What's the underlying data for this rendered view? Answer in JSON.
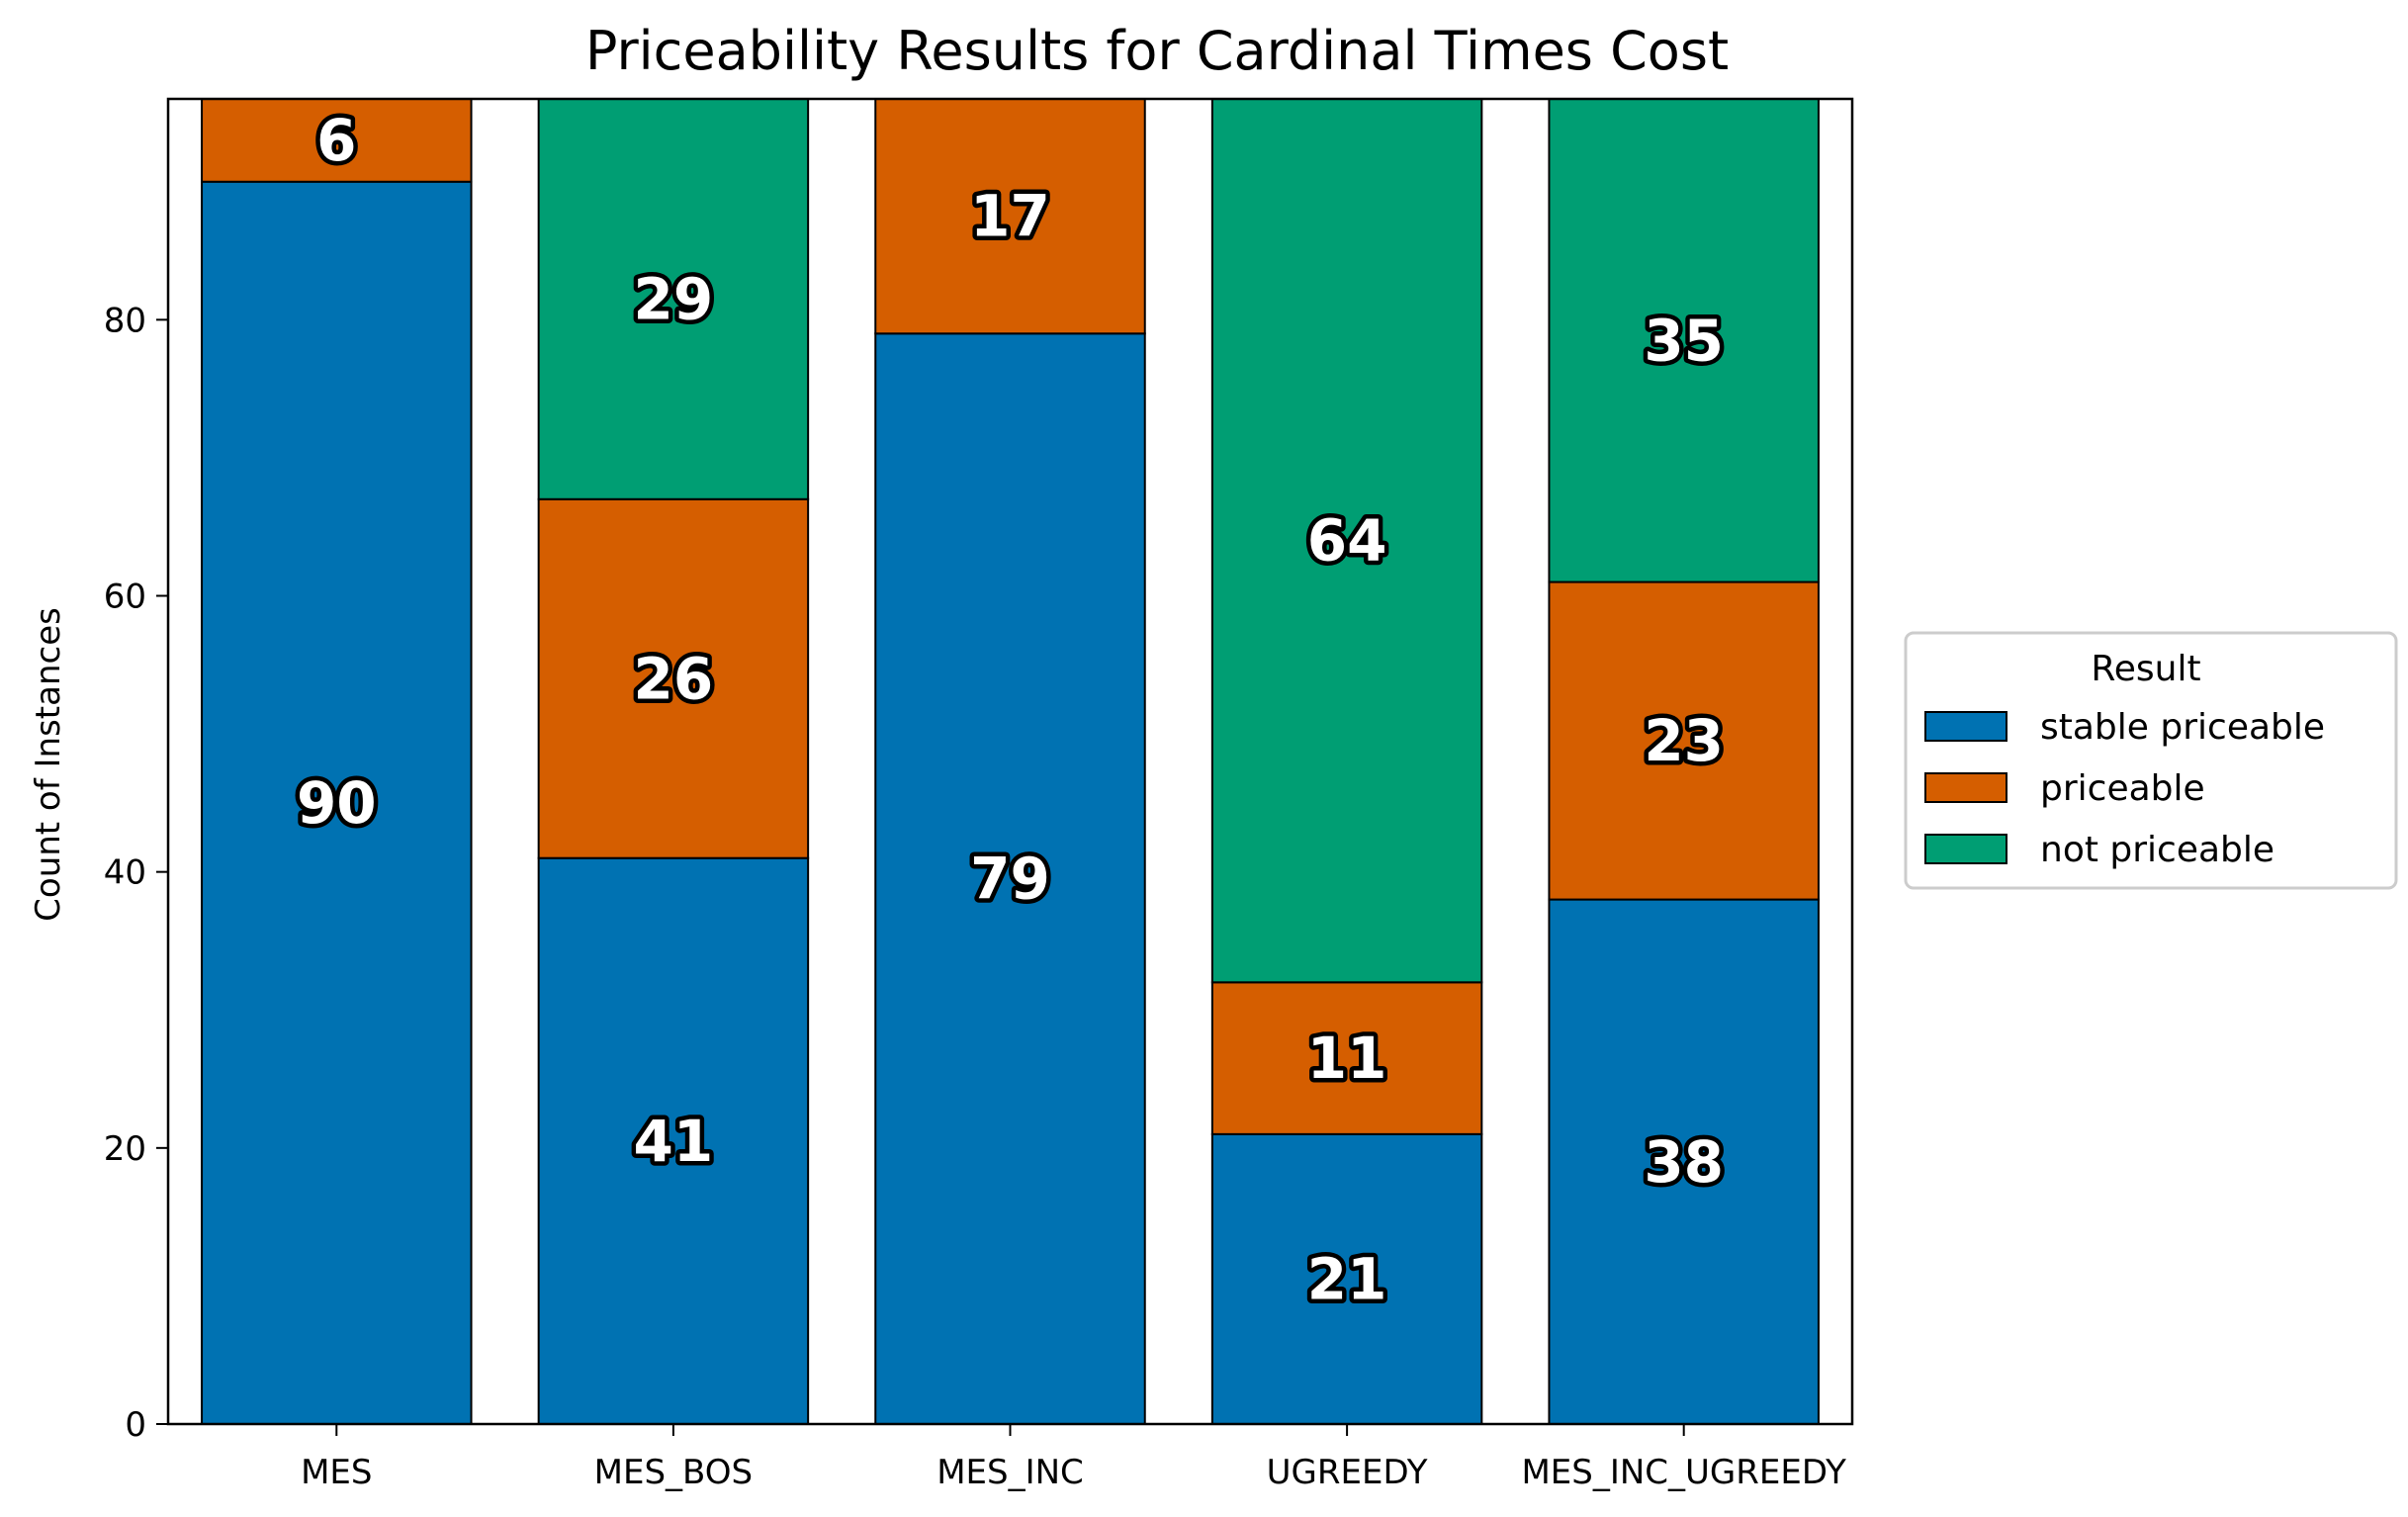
{
  "chart_data": {
    "type": "bar",
    "stacked": true,
    "title": "Priceability Results for Cardinal Times Cost",
    "xlabel": "",
    "ylabel": "Count of Instances",
    "ylim": [
      0,
      96
    ],
    "yticks": [
      0,
      20,
      40,
      60,
      80
    ],
    "categories": [
      "MES",
      "MES_BOS",
      "MES_INC",
      "UGREEDY",
      "MES_INC_UGREEDY"
    ],
    "series": [
      {
        "name": "stable priceable",
        "color": "#0072b2",
        "values": [
          90,
          41,
          79,
          21,
          38
        ]
      },
      {
        "name": "priceable",
        "color": "#d55e00",
        "values": [
          6,
          26,
          17,
          11,
          23
        ]
      },
      {
        "name": "not priceable",
        "color": "#009e73",
        "values": [
          0,
          29,
          0,
          64,
          35
        ]
      }
    ],
    "legend": {
      "title": "Result",
      "placement": "right"
    },
    "grid": false
  }
}
